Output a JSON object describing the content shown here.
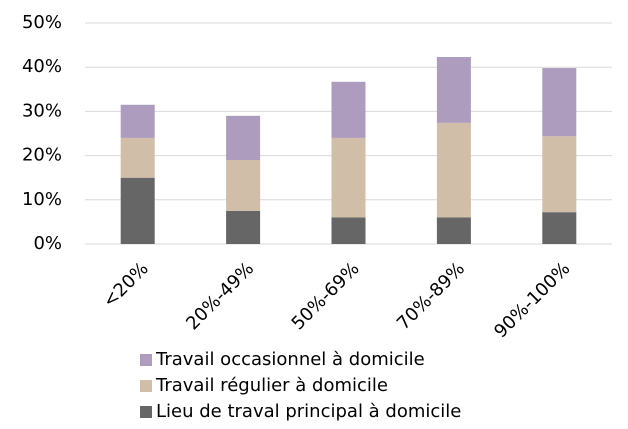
{
  "chart_data": {
    "type": "stacked_bar",
    "categories": [
      "<20%",
      "20%-49%",
      "50%-69%",
      "70%-89%",
      "90%-100%"
    ],
    "series": [
      {
        "name": "Lieu de traval principal à domicile",
        "color": "#666666",
        "values": [
          15,
          7.5,
          6,
          6,
          7.2
        ]
      },
      {
        "name": "Travail régulier à domicile",
        "color": "#d0bea8",
        "values": [
          9,
          11.5,
          18,
          21.4,
          17.2
        ]
      },
      {
        "name": "Travail occasionnel à domicile",
        "color": "#ae9cbf",
        "values": [
          7.5,
          10,
          12.7,
          14.9,
          15.4
        ]
      }
    ],
    "ylim": [
      0,
      50
    ],
    "yticks": [
      {
        "value": 0,
        "label": "0%"
      },
      {
        "value": 10,
        "label": "10%"
      },
      {
        "value": 20,
        "label": "20%"
      },
      {
        "value": 30,
        "label": "30%"
      },
      {
        "value": 40,
        "label": "40%"
      },
      {
        "value": 50,
        "label": "50%"
      }
    ],
    "grid": true
  }
}
